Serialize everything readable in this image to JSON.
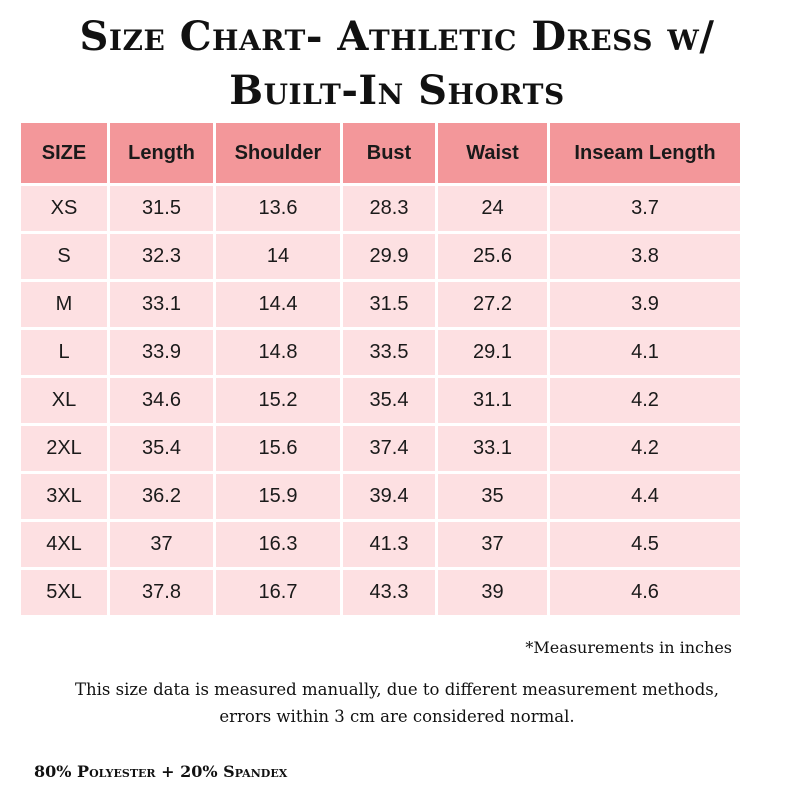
{
  "title": {
    "line1": "Size Chart- Athletic Dress w/",
    "line2": "Built-In Shorts"
  },
  "table": {
    "headers": [
      "SIZE",
      "Length",
      "Shoulder",
      "Bust",
      "Waist",
      "Inseam Length"
    ],
    "rows": [
      [
        "XS",
        "31.5",
        "13.6",
        "28.3",
        "24",
        "3.7"
      ],
      [
        "S",
        "32.3",
        "14",
        "29.9",
        "25.6",
        "3.8"
      ],
      [
        "M",
        "33.1",
        "14.4",
        "31.5",
        "27.2",
        "3.9"
      ],
      [
        "L",
        "33.9",
        "14.8",
        "33.5",
        "29.1",
        "4.1"
      ],
      [
        "XL",
        "34.6",
        "15.2",
        "35.4",
        "31.1",
        "4.2"
      ],
      [
        "2XL",
        "35.4",
        "15.6",
        "37.4",
        "33.1",
        "4.2"
      ],
      [
        "3XL",
        "36.2",
        "15.9",
        "39.4",
        "35",
        "4.4"
      ],
      [
        "4XL",
        "37",
        "16.3",
        "41.3",
        "37",
        "4.5"
      ],
      [
        "5XL",
        "37.8",
        "16.7",
        "43.3",
        "39",
        "4.6"
      ]
    ]
  },
  "note": "*Measurements in inches",
  "disclaimer": {
    "line1": "This size data is measured manually, due to different measurement methods,",
    "line2": "errors within 3 cm are considered normal."
  },
  "material": "80% Polyester + 20% Spandex",
  "colors": {
    "header_bg": "#f3979a",
    "cell_bg": "#fde0e2"
  }
}
